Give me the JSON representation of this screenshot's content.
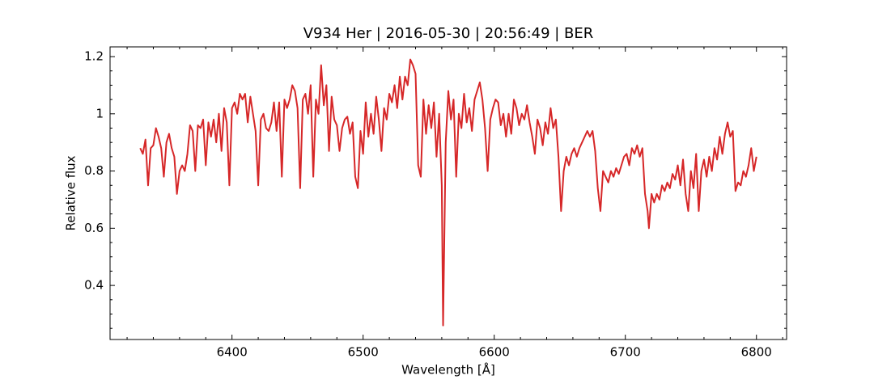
{
  "chart_data": {
    "type": "line",
    "title": "V934 Her | 2016-05-30 | 20:56:49 | BER",
    "xlabel": "Wavelength [Å]",
    "ylabel": "Relative flux",
    "xlim": [
      6307,
      6823
    ],
    "ylim": [
      0.211,
      1.234
    ],
    "xticks": [
      6400,
      6500,
      6600,
      6700,
      6800
    ],
    "yticks": [
      0.4,
      0.6,
      0.8,
      1.0,
      1.2
    ],
    "xminorticks": [
      6320,
      6340,
      6360,
      6380,
      6420,
      6440,
      6460,
      6480,
      6520,
      6540,
      6560,
      6580,
      6620,
      6640,
      6660,
      6680,
      6720,
      6740,
      6760,
      6780,
      6820
    ],
    "yminorticks": [
      0.25,
      0.3,
      0.35,
      0.45,
      0.5,
      0.55,
      0.65,
      0.7,
      0.75,
      0.85,
      0.9,
      0.95,
      1.05,
      1.1,
      1.15
    ],
    "series": [
      {
        "color": "#d62728",
        "x": [
          6330,
          6332,
          6334,
          6336,
          6338,
          6340,
          6342,
          6344,
          6346,
          6348,
          6350,
          6352,
          6354,
          6356,
          6358,
          6360,
          6362,
          6364,
          6366,
          6368,
          6370,
          6372,
          6374,
          6376,
          6378,
          6380,
          6382,
          6384,
          6386,
          6388,
          6390,
          6392,
          6394,
          6396,
          6398,
          6400,
          6402,
          6404,
          6406,
          6408,
          6410,
          6412,
          6414,
          6416,
          6418,
          6420,
          6422,
          6424,
          6426,
          6428,
          6430,
          6432,
          6434,
          6436,
          6438,
          6440,
          6442,
          6444,
          6446,
          6448,
          6450,
          6452,
          6454,
          6456,
          6458,
          6460,
          6462,
          6464,
          6466,
          6468,
          6470,
          6472,
          6474,
          6476,
          6478,
          6480,
          6482,
          6484,
          6486,
          6488,
          6490,
          6492,
          6494,
          6496,
          6498,
          6500,
          6502,
          6504,
          6506,
          6508,
          6510,
          6512,
          6514,
          6516,
          6518,
          6520,
          6522,
          6524,
          6526,
          6528,
          6530,
          6532,
          6534,
          6536,
          6538,
          6540,
          6542,
          6544,
          6546,
          6548,
          6550,
          6552,
          6554,
          6556,
          6558,
          6560,
          6561,
          6563,
          6565,
          6567,
          6569,
          6571,
          6573,
          6575,
          6577,
          6579,
          6581,
          6583,
          6585,
          6587,
          6589,
          6591,
          6593,
          6595,
          6597,
          6599,
          6601,
          6603,
          6605,
          6607,
          6609,
          6611,
          6613,
          6615,
          6617,
          6619,
          6621,
          6623,
          6625,
          6627,
          6629,
          6631,
          6633,
          6635,
          6637,
          6639,
          6641,
          6643,
          6645,
          6647,
          6649,
          6651,
          6653,
          6655,
          6657,
          6659,
          6661,
          6663,
          6665,
          6667,
          6669,
          6671,
          6673,
          6675,
          6677,
          6679,
          6681,
          6683,
          6685,
          6687,
          6689,
          6691,
          6693,
          6695,
          6697,
          6699,
          6701,
          6703,
          6705,
          6707,
          6709,
          6711,
          6713,
          6715,
          6717,
          6718,
          6720,
          6722,
          6724,
          6726,
          6728,
          6730,
          6732,
          6734,
          6736,
          6738,
          6740,
          6742,
          6744,
          6746,
          6748,
          6750,
          6752,
          6754,
          6756,
          6758,
          6760,
          6762,
          6764,
          6766,
          6768,
          6770,
          6772,
          6774,
          6776,
          6778,
          6780,
          6782,
          6784,
          6786,
          6788,
          6790,
          6792,
          6794,
          6796,
          6798,
          6800
        ],
        "values": [
          0.88,
          0.86,
          0.91,
          0.75,
          0.88,
          0.89,
          0.95,
          0.92,
          0.88,
          0.78,
          0.9,
          0.93,
          0.88,
          0.85,
          0.72,
          0.8,
          0.82,
          0.8,
          0.86,
          0.96,
          0.94,
          0.8,
          0.96,
          0.95,
          0.98,
          0.82,
          0.97,
          0.92,
          0.98,
          0.9,
          1.0,
          0.87,
          1.02,
          0.97,
          0.75,
          1.02,
          1.04,
          1.0,
          1.07,
          1.05,
          1.07,
          0.97,
          1.06,
          1.0,
          0.94,
          0.75,
          0.98,
          1.0,
          0.95,
          0.94,
          0.97,
          1.04,
          0.94,
          1.04,
          0.78,
          1.05,
          1.02,
          1.05,
          1.1,
          1.08,
          1.02,
          0.74,
          1.05,
          1.07,
          1.0,
          1.1,
          0.78,
          1.05,
          1.0,
          1.17,
          1.03,
          1.1,
          0.87,
          1.06,
          0.98,
          0.96,
          0.87,
          0.95,
          0.98,
          0.99,
          0.93,
          0.97,
          0.78,
          0.74,
          0.94,
          0.86,
          1.04,
          0.92,
          1.0,
          0.93,
          1.06,
          0.98,
          0.87,
          1.02,
          0.98,
          1.07,
          1.04,
          1.1,
          1.02,
          1.13,
          1.05,
          1.13,
          1.1,
          1.19,
          1.17,
          1.14,
          0.82,
          0.78,
          1.05,
          0.93,
          1.03,
          0.95,
          1.04,
          0.85,
          1.0,
          0.75,
          0.26,
          0.9,
          1.08,
          0.98,
          1.05,
          0.78,
          1.0,
          0.95,
          1.07,
          0.97,
          1.02,
          0.94,
          1.05,
          1.08,
          1.11,
          1.05,
          0.95,
          0.8,
          0.98,
          1.02,
          1.05,
          1.04,
          0.96,
          1.0,
          0.92,
          1.0,
          0.93,
          1.05,
          1.02,
          0.96,
          1.0,
          0.98,
          1.03,
          0.97,
          0.92,
          0.86,
          0.98,
          0.95,
          0.89,
          0.97,
          0.93,
          1.02,
          0.95,
          0.98,
          0.85,
          0.66,
          0.8,
          0.85,
          0.82,
          0.86,
          0.88,
          0.85,
          0.88,
          0.9,
          0.92,
          0.94,
          0.92,
          0.94,
          0.87,
          0.74,
          0.66,
          0.8,
          0.78,
          0.76,
          0.8,
          0.78,
          0.81,
          0.79,
          0.82,
          0.85,
          0.86,
          0.82,
          0.88,
          0.86,
          0.89,
          0.85,
          0.88,
          0.72,
          0.66,
          0.6,
          0.72,
          0.69,
          0.72,
          0.7,
          0.75,
          0.73,
          0.76,
          0.74,
          0.79,
          0.77,
          0.82,
          0.75,
          0.84,
          0.72,
          0.66,
          0.8,
          0.74,
          0.86,
          0.66,
          0.8,
          0.84,
          0.78,
          0.85,
          0.8,
          0.88,
          0.84,
          0.92,
          0.86,
          0.93,
          0.97,
          0.92,
          0.94,
          0.73,
          0.76,
          0.75,
          0.8,
          0.78,
          0.82,
          0.88,
          0.8,
          0.85
        ]
      }
    ]
  }
}
